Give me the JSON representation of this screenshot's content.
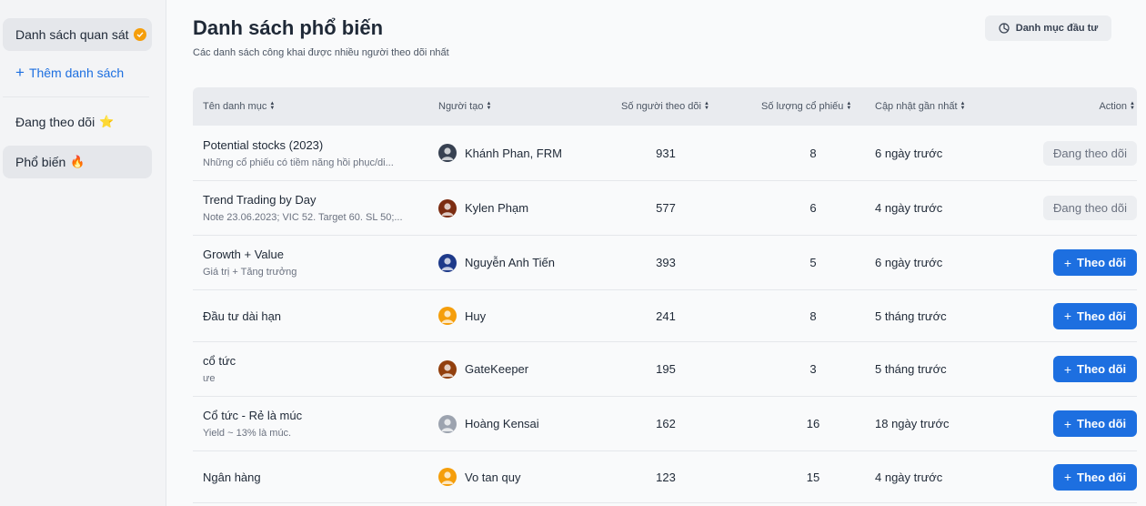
{
  "sidebar": {
    "watchlist_label": "Danh sách quan sát",
    "add_list_label": "Thêm danh sách",
    "following_label": "Đang theo dõi",
    "following_emoji": "⭐",
    "popular_label": "Phổ biến",
    "popular_emoji": "🔥"
  },
  "header": {
    "title": "Danh sách phổ biến",
    "subtitle": "Các danh sách công khai được nhiều người theo dõi nhất",
    "portfolio_button": "Danh mục đầu tư"
  },
  "table": {
    "columns": {
      "name": "Tên danh mục",
      "creator": "Người tạo",
      "followers": "Số người theo dõi",
      "stocks": "Số lượng cổ phiếu",
      "updated": "Cập nhật gần nhất",
      "action": "Action"
    },
    "rows": [
      {
        "name": "Potential stocks (2023)",
        "desc": "Những cổ phiếu có tiềm năng hồi phục/di...",
        "creator": "Khánh Phan, FRM",
        "avatar_color": "#374151",
        "followers": "931",
        "stocks": "8",
        "updated": "6 ngày trước",
        "action": "Đang theo dõi",
        "following": true
      },
      {
        "name": "Trend Trading by Day",
        "desc": "Note 23.06.2023; VIC 52. Target 60. SL 50;...",
        "creator": "Kylen Phạm",
        "avatar_color": "#7c2d12",
        "followers": "577",
        "stocks": "6",
        "updated": "4 ngày trước",
        "action": "Đang theo dõi",
        "following": true
      },
      {
        "name": "Growth + Value",
        "desc": "Giá trị + Tăng trưởng",
        "creator": "Nguyễn Anh Tiến",
        "avatar_color": "#1e3a8a",
        "followers": "393",
        "stocks": "5",
        "updated": "6 ngày trước",
        "action": "Theo dõi",
        "following": false
      },
      {
        "name": "Đầu tư dài hạn",
        "desc": "",
        "creator": "Huy",
        "avatar_color": "#f59e0b",
        "followers": "241",
        "stocks": "8",
        "updated": "5 tháng trước",
        "action": "Theo dõi",
        "following": false
      },
      {
        "name": "cổ tức",
        "desc": "ưe",
        "creator": "GateKeeper",
        "avatar_color": "#92400e",
        "followers": "195",
        "stocks": "3",
        "updated": "5 tháng trước",
        "action": "Theo dõi",
        "following": false
      },
      {
        "name": "Cổ tức - Rẻ là múc",
        "desc": "Yield ~ 13% là múc.",
        "creator": "Hoàng Kensai",
        "avatar_color": "#9ca3af",
        "followers": "162",
        "stocks": "16",
        "updated": "18 ngày trước",
        "action": "Theo dõi",
        "following": false
      },
      {
        "name": "Ngân hàng",
        "desc": "",
        "creator": "Vo tan quy",
        "avatar_color": "#f59e0b",
        "followers": "123",
        "stocks": "15",
        "updated": "4 ngày trước",
        "action": "Theo dõi",
        "following": false
      }
    ]
  },
  "colors": {
    "accent": "#1d6fe0",
    "badge": "#f59e0b"
  }
}
